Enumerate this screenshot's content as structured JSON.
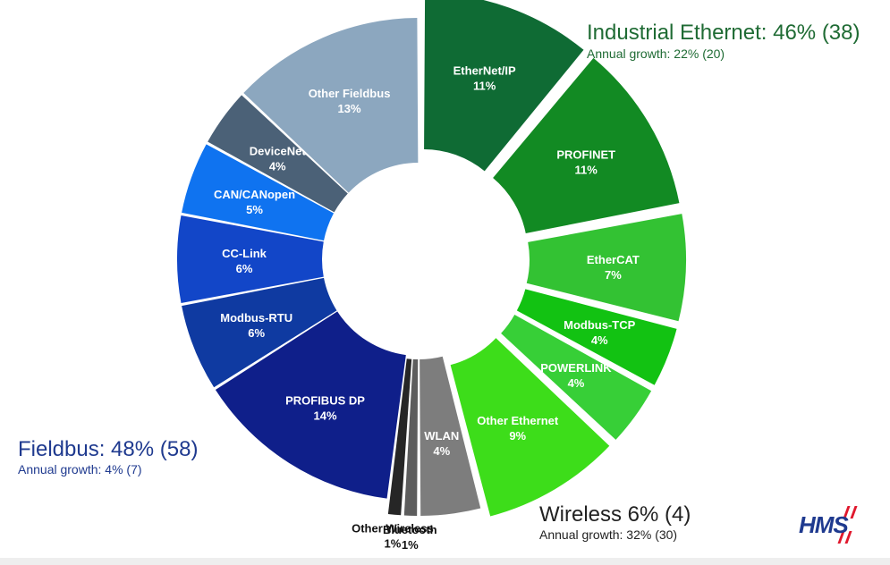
{
  "chart_data": {
    "type": "pie",
    "segments": [
      {
        "label": "EtherNet/IP",
        "percent_label": "11%",
        "value": 11,
        "group": "Industrial Ethernet",
        "color": "#0f6b34"
      },
      {
        "label": "PROFINET",
        "percent_label": "11%",
        "value": 11,
        "group": "Industrial Ethernet",
        "color": "#128a23"
      },
      {
        "label": "EtherCAT",
        "percent_label": "7%",
        "value": 7,
        "group": "Industrial Ethernet",
        "color": "#33c233"
      },
      {
        "label": "Modbus-TCP",
        "percent_label": "4%",
        "value": 4,
        "group": "Industrial Ethernet",
        "color": "#12c212"
      },
      {
        "label": "POWERLINK",
        "percent_label": "4%",
        "value": 4,
        "group": "Industrial Ethernet",
        "color": "#37cf37"
      },
      {
        "label": "Other Ethernet",
        "percent_label": "9%",
        "value": 9,
        "group": "Industrial Ethernet",
        "color": "#3ddd1a"
      },
      {
        "label": "WLAN",
        "percent_label": "4%",
        "value": 4,
        "group": "Wireless",
        "color": "#7d7d7d"
      },
      {
        "label": "Bluetooth",
        "percent_label": "1%",
        "value": 1,
        "group": "Wireless",
        "color": "#5d5d5d"
      },
      {
        "label": "Other Wireless",
        "percent_label": "1%",
        "value": 1,
        "group": "Wireless",
        "color": "#262626"
      },
      {
        "label": "PROFIBUS DP",
        "percent_label": "14%",
        "value": 14,
        "group": "Fieldbus",
        "color": "#0f1f8a"
      },
      {
        "label": "Modbus-RTU",
        "percent_label": "6%",
        "value": 6,
        "group": "Fieldbus",
        "color": "#0f3aa1"
      },
      {
        "label": "CC-Link",
        "percent_label": "6%",
        "value": 6,
        "group": "Fieldbus",
        "color": "#1246c8"
      },
      {
        "label": "CAN/CANopen",
        "percent_label": "5%",
        "value": 5,
        "group": "Fieldbus",
        "color": "#0f73f0"
      },
      {
        "label": "DeviceNet",
        "percent_label": "4%",
        "value": 4,
        "group": "Fieldbus",
        "color": "#4b6177"
      },
      {
        "label": "Other Fieldbus",
        "percent_label": "13%",
        "value": 13,
        "group": "Fieldbus",
        "color": "#8ca7bf"
      }
    ],
    "groups": {
      "industrial_ethernet": {
        "title": "Industrial Ethernet: 46% (38)",
        "growth": "Annual growth: 22% (20)"
      },
      "fieldbus": {
        "title": "Fieldbus: 48% (58)",
        "growth": "Annual growth: 4% (7)"
      },
      "wireless": {
        "title": "Wireless 6% (4)",
        "growth": "Annual growth: 32% (30)"
      }
    }
  },
  "logo": {
    "text": "HMS"
  }
}
